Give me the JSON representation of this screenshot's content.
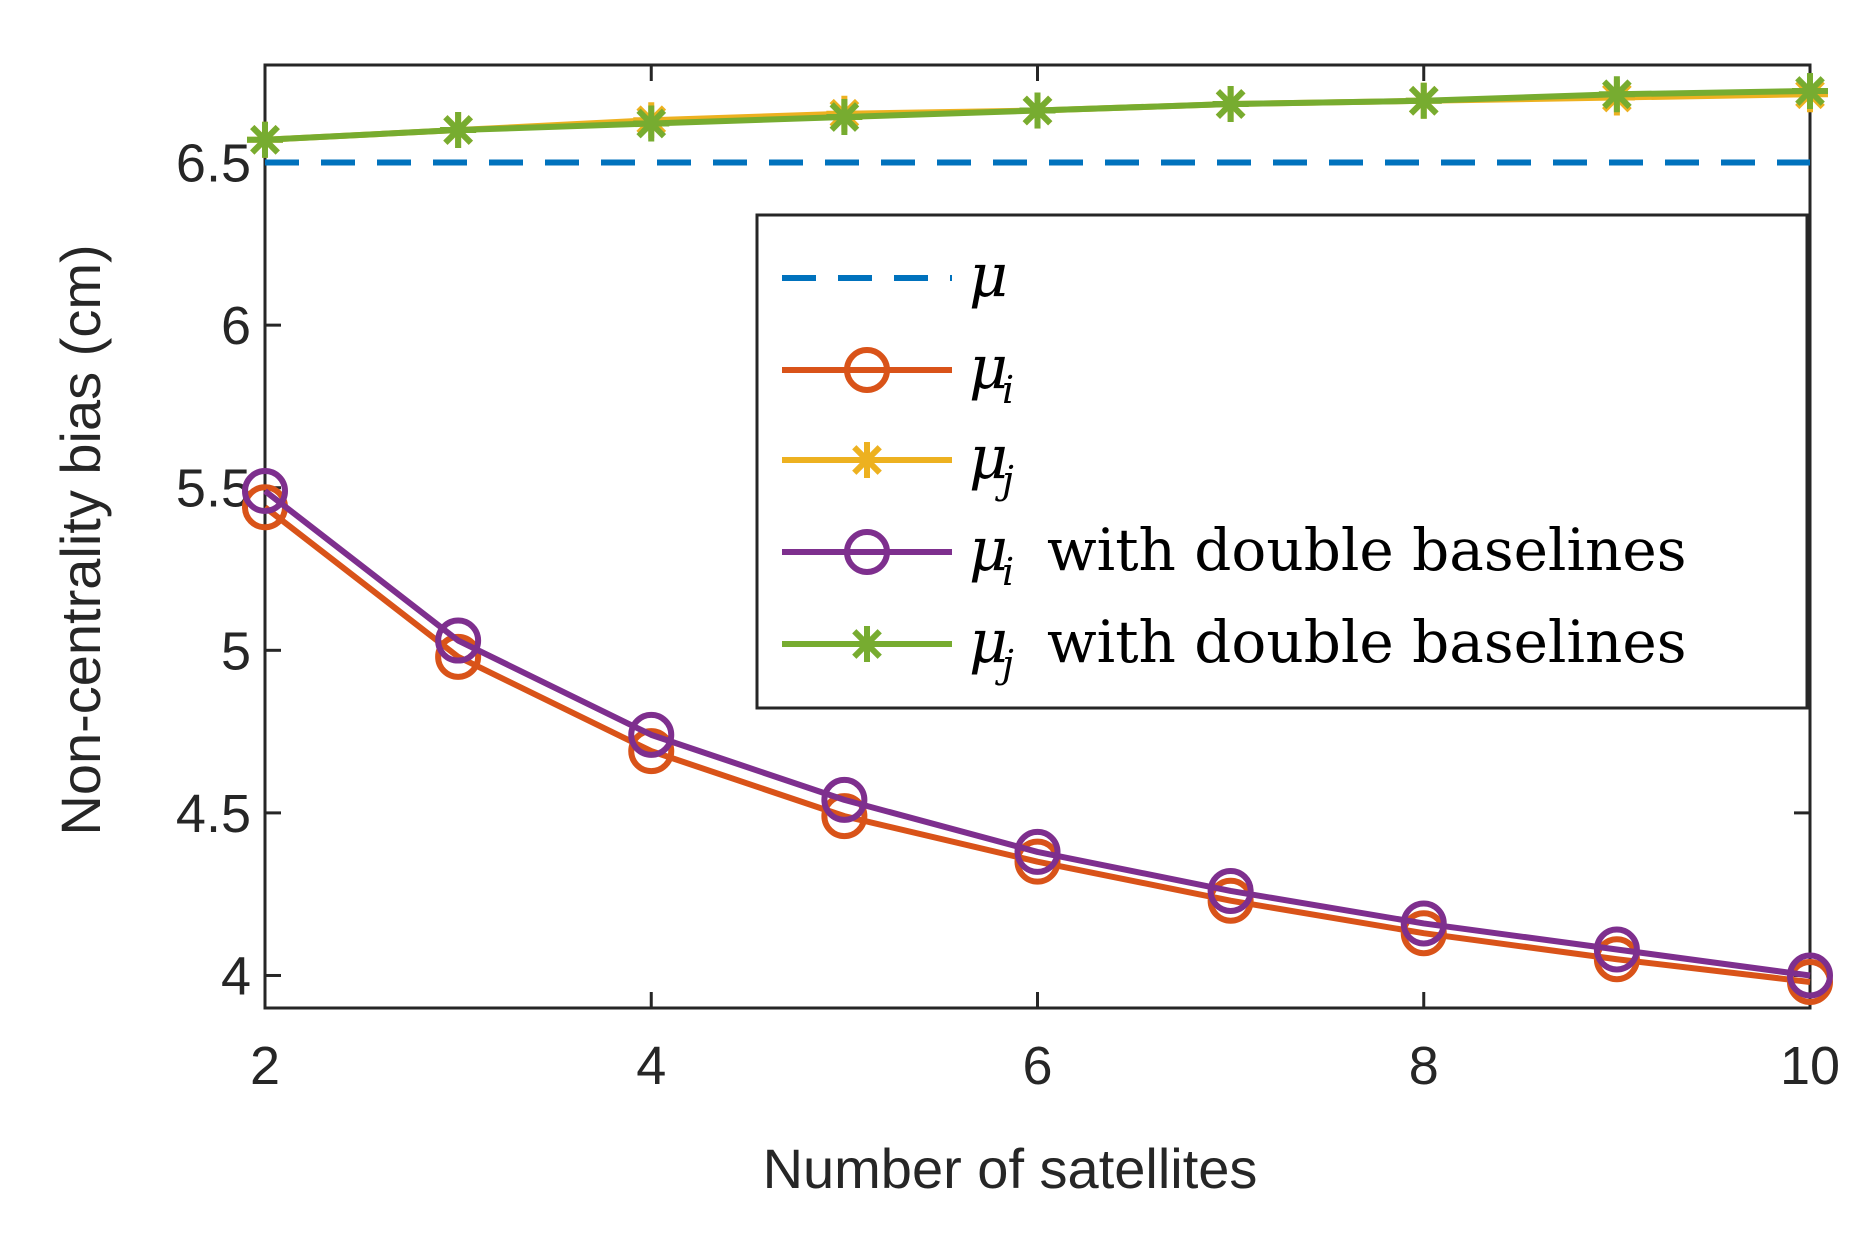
{
  "chart_data": {
    "type": "line",
    "xlabel": "Number of satellites",
    "ylabel": "Non-centrality bias (cm)",
    "xlim": [
      2,
      10
    ],
    "ylim": [
      3.9,
      6.8
    ],
    "xticks": [
      2,
      4,
      6,
      8,
      10
    ],
    "xtick_labels": [
      "2",
      "4",
      "6",
      "8",
      "10"
    ],
    "yticks": [
      4,
      4.5,
      5,
      5.5,
      6,
      6.5
    ],
    "ytick_labels": [
      "4",
      "4.5",
      "5",
      "5.5",
      "6",
      "6.5"
    ],
    "grid": false,
    "legend_position": "center-right",
    "x": [
      2,
      3,
      4,
      5,
      6,
      7,
      8,
      9,
      10
    ],
    "series": [
      {
        "name": "μ",
        "symbol": "μ",
        "subscript": "",
        "suffix": "",
        "color": "#0072BD",
        "style": "dashed",
        "marker": "none",
        "values": [
          6.5,
          6.5,
          6.5,
          6.5,
          6.5,
          6.5,
          6.5,
          6.5,
          6.5
        ]
      },
      {
        "name": "μi",
        "symbol": "μ",
        "subscript": "i",
        "suffix": "",
        "color": "#D95319",
        "style": "solid",
        "marker": "circle",
        "values": [
          5.44,
          4.98,
          4.69,
          4.49,
          4.35,
          4.23,
          4.13,
          4.05,
          3.98
        ]
      },
      {
        "name": "μj",
        "symbol": "μ",
        "subscript": "j",
        "suffix": "",
        "color": "#EDB120",
        "style": "solid",
        "marker": "asterisk",
        "values": [
          6.57,
          6.6,
          6.63,
          6.65,
          6.66,
          6.68,
          6.69,
          6.7,
          6.71
        ]
      },
      {
        "name": "μi with double baselines",
        "symbol": "μ",
        "subscript": "i",
        "suffix": "with double baselines",
        "color": "#7E2F8E",
        "style": "solid",
        "marker": "circle",
        "values": [
          5.49,
          5.03,
          4.74,
          4.54,
          4.38,
          4.26,
          4.16,
          4.08,
          4.0
        ]
      },
      {
        "name": "μj with double baselines",
        "symbol": "μ",
        "subscript": "j",
        "suffix": "with double baselines",
        "color": "#77AC30",
        "style": "solid",
        "marker": "asterisk",
        "values": [
          6.57,
          6.6,
          6.62,
          6.64,
          6.66,
          6.68,
          6.69,
          6.71,
          6.72
        ]
      }
    ]
  }
}
